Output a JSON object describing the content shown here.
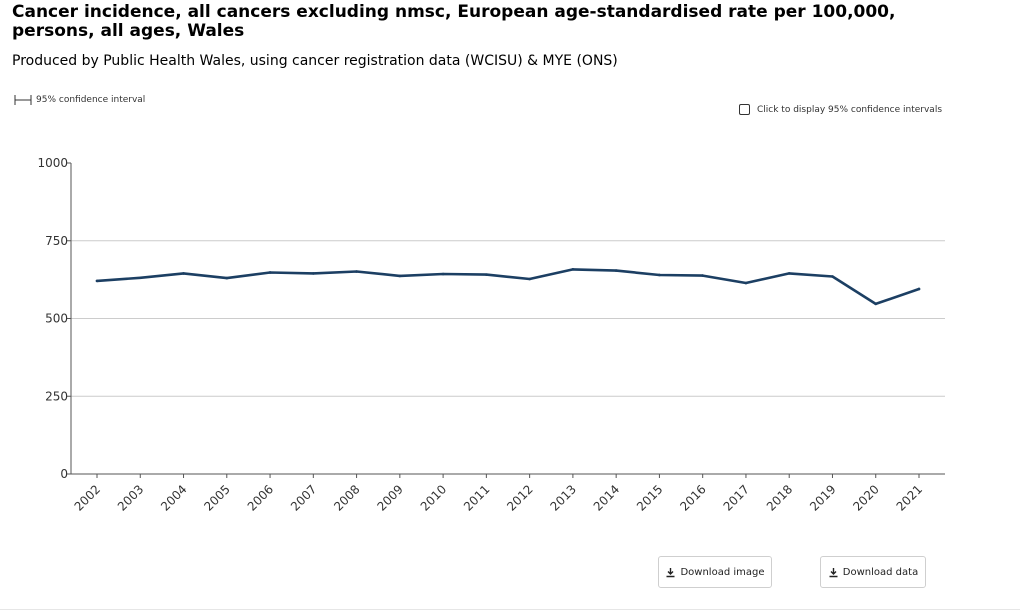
{
  "header": {
    "title": "Cancer incidence, all cancers excluding nmsc, European age-standardised rate per 100,000, persons, all ages, Wales",
    "subtitle": "Produced by Public Health Wales, using cancer registration data (WCISU) & MYE (ONS)"
  },
  "legend": {
    "ci_label": "95% confidence interval"
  },
  "controls": {
    "ci_toggle_label": "Click to display 95% confidence intervals",
    "ci_checked": false
  },
  "buttons": {
    "download_image": "Download image",
    "download_data": "Download data"
  },
  "colors": {
    "line": "#1c3f63",
    "grid": "#cccccc",
    "axis": "#555555"
  },
  "chart_data": {
    "type": "line",
    "title": "",
    "xlabel": "",
    "ylabel": "",
    "ylim": [
      0,
      1000
    ],
    "yticks": [
      0,
      250,
      500,
      750,
      1000
    ],
    "grid": true,
    "categories": [
      "2002",
      "2003",
      "2004",
      "2005",
      "2006",
      "2007",
      "2008",
      "2009",
      "2010",
      "2011",
      "2012",
      "2013",
      "2014",
      "2015",
      "2016",
      "2017",
      "2018",
      "2019",
      "2020",
      "2021"
    ],
    "series": [
      {
        "values": [
          621,
          631,
          645,
          630,
          648,
          645,
          651,
          637,
          643,
          641,
          627,
          658,
          654,
          640,
          638,
          614,
          645,
          635,
          547,
          595
        ]
      }
    ]
  }
}
